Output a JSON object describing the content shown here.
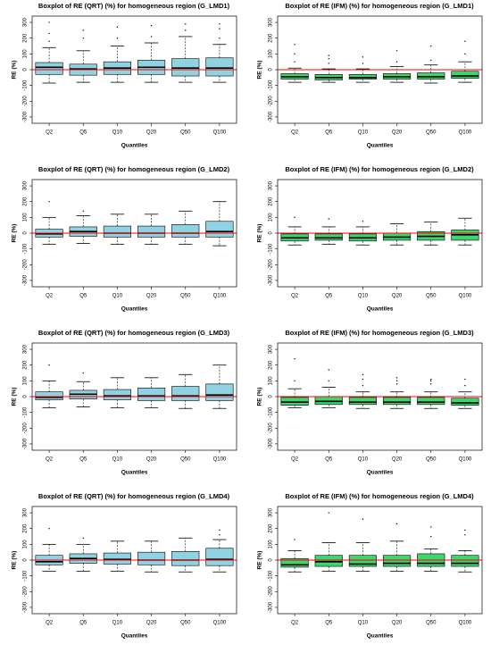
{
  "chart_data": [
    {
      "type": "box",
      "title": "Boxplot of RE (QRT) (%) for homogeneous region (G_LMD1)",
      "xlabel": "Quantiles",
      "ylabel": "RE (%)",
      "box_color": "#8fd3e3",
      "reference_line": {
        "value": 0,
        "color": "#ff0000"
      },
      "ylim": [
        -340,
        340
      ],
      "yticks": [
        -300,
        -200,
        -100,
        0,
        100,
        200,
        300
      ],
      "categories": [
        "Q2",
        "Q5",
        "Q10",
        "Q20",
        "Q50",
        "Q100"
      ],
      "boxes": [
        {
          "whisker_low": -85,
          "q1": -30,
          "median": 15,
          "q3": 45,
          "whisker_high": 140,
          "outliers": [
            180,
            230,
            300
          ]
        },
        {
          "whisker_low": -80,
          "q1": -35,
          "median": 5,
          "q3": 35,
          "whisker_high": 120,
          "outliers": [
            200,
            250
          ]
        },
        {
          "whisker_low": -80,
          "q1": -30,
          "median": 10,
          "q3": 50,
          "whisker_high": 150,
          "outliers": [
            200,
            270
          ]
        },
        {
          "whisker_low": -80,
          "q1": -30,
          "median": 15,
          "q3": 60,
          "whisker_high": 170,
          "outliers": [
            210,
            280
          ]
        },
        {
          "whisker_low": -80,
          "q1": -40,
          "median": 10,
          "q3": 70,
          "whisker_high": 210,
          "outliers": [
            250,
            290
          ]
        },
        {
          "whisker_low": -80,
          "q1": -40,
          "median": 10,
          "q3": 75,
          "whisker_high": 160,
          "outliers": [
            200,
            260,
            290
          ]
        }
      ]
    },
    {
      "type": "box",
      "title": "Boxplot of RE (IFM) (%) for homogeneous region (G_LMD1)",
      "xlabel": "Quantiles",
      "ylabel": "RE (%)",
      "box_color": "#3dd66e",
      "reference_line": {
        "value": 0,
        "color": "#ff0000"
      },
      "ylim": [
        -340,
        340
      ],
      "yticks": [
        -300,
        -200,
        -100,
        0,
        100,
        200,
        300
      ],
      "categories": [
        "Q2",
        "Q5",
        "Q10",
        "Q20",
        "Q50",
        "Q100"
      ],
      "boxes": [
        {
          "whisker_low": -80,
          "q1": -60,
          "median": -45,
          "q3": -25,
          "whisker_high": 10,
          "outliers": [
            50,
            100,
            160
          ]
        },
        {
          "whisker_low": -80,
          "q1": -65,
          "median": -50,
          "q3": -30,
          "whisker_high": 5,
          "outliers": [
            40,
            70,
            90
          ]
        },
        {
          "whisker_low": -80,
          "q1": -60,
          "median": -50,
          "q3": -30,
          "whisker_high": 5,
          "outliers": [
            40,
            80
          ]
        },
        {
          "whisker_low": -80,
          "q1": -60,
          "median": -45,
          "q3": -25,
          "whisker_high": 20,
          "outliers": [
            50,
            120
          ]
        },
        {
          "whisker_low": -85,
          "q1": -60,
          "median": -45,
          "q3": -20,
          "whisker_high": 30,
          "outliers": [
            60,
            150
          ]
        },
        {
          "whisker_low": -80,
          "q1": -55,
          "median": -40,
          "q3": -10,
          "whisker_high": 50,
          "outliers": [
            100,
            180
          ]
        }
      ]
    },
    {
      "type": "box",
      "title": "Boxplot of RE (QRT) (%) for homogeneous region (G_LMD2)",
      "xlabel": "Quantiles",
      "ylabel": "RE (%)",
      "box_color": "#8fd3e3",
      "reference_line": {
        "value": 0,
        "color": "#ff0000"
      },
      "ylim": [
        -340,
        340
      ],
      "yticks": [
        -300,
        -200,
        -100,
        0,
        100,
        200,
        300
      ],
      "categories": [
        "Q2",
        "Q5",
        "Q10",
        "Q20",
        "Q50",
        "Q100"
      ],
      "boxes": [
        {
          "whisker_low": -70,
          "q1": -25,
          "median": -5,
          "q3": 25,
          "whisker_high": 100,
          "outliers": [
            200
          ]
        },
        {
          "whisker_low": -65,
          "q1": -20,
          "median": 10,
          "q3": 40,
          "whisker_high": 110,
          "outliers": [
            140
          ]
        },
        {
          "whisker_low": -70,
          "q1": -25,
          "median": 0,
          "q3": 45,
          "whisker_high": 120,
          "outliers": []
        },
        {
          "whisker_low": -70,
          "q1": -25,
          "median": 0,
          "q3": 45,
          "whisker_high": 120,
          "outliers": []
        },
        {
          "whisker_low": -70,
          "q1": -25,
          "median": 0,
          "q3": 55,
          "whisker_high": 140,
          "outliers": []
        },
        {
          "whisker_low": -80,
          "q1": -25,
          "median": 10,
          "q3": 75,
          "whisker_high": 200,
          "outliers": []
        }
      ]
    },
    {
      "type": "box",
      "title": "Boxplot of RE (IFM) (%) for homogeneous region (G_LMD2)",
      "xlabel": "Quantiles",
      "ylabel": "RE (%)",
      "box_color": "#3dd66e",
      "reference_line": {
        "value": 0,
        "color": "#ff0000"
      },
      "ylim": [
        -340,
        340
      ],
      "yticks": [
        -300,
        -200,
        -100,
        0,
        100,
        200,
        300
      ],
      "categories": [
        "Q2",
        "Q5",
        "Q10",
        "Q20",
        "Q50",
        "Q100"
      ],
      "boxes": [
        {
          "whisker_low": -75,
          "q1": -50,
          "median": -30,
          "q3": -5,
          "whisker_high": 40,
          "outliers": [
            100
          ]
        },
        {
          "whisker_low": -70,
          "q1": -45,
          "median": -30,
          "q3": -5,
          "whisker_high": 40,
          "outliers": [
            90
          ]
        },
        {
          "whisker_low": -75,
          "q1": -50,
          "median": -30,
          "q3": -5,
          "whisker_high": 40,
          "outliers": [
            75
          ]
        },
        {
          "whisker_low": -75,
          "q1": -45,
          "median": -25,
          "q3": 0,
          "whisker_high": 60,
          "outliers": []
        },
        {
          "whisker_low": -75,
          "q1": -45,
          "median": -20,
          "q3": 10,
          "whisker_high": 70,
          "outliers": []
        },
        {
          "whisker_low": -75,
          "q1": -45,
          "median": -10,
          "q3": 20,
          "whisker_high": 95,
          "outliers": []
        }
      ]
    },
    {
      "type": "box",
      "title": "Boxplot of RE (QRT) (%) for homogeneous region (G_LMD3)",
      "xlabel": "Quantiles",
      "ylabel": "RE (%)",
      "box_color": "#8fd3e3",
      "reference_line": {
        "value": 0,
        "color": "#ff0000"
      },
      "ylim": [
        -340,
        340
      ],
      "yticks": [
        -300,
        -200,
        -100,
        0,
        100,
        200,
        300
      ],
      "categories": [
        "Q2",
        "Q5",
        "Q10",
        "Q20",
        "Q50",
        "Q100"
      ],
      "boxes": [
        {
          "whisker_low": -70,
          "q1": -20,
          "median": -5,
          "q3": 30,
          "whisker_high": 100,
          "outliers": [
            200
          ]
        },
        {
          "whisker_low": -65,
          "q1": -15,
          "median": 15,
          "q3": 40,
          "whisker_high": 95,
          "outliers": [
            150
          ]
        },
        {
          "whisker_low": -70,
          "q1": -20,
          "median": 5,
          "q3": 45,
          "whisker_high": 120,
          "outliers": []
        },
        {
          "whisker_low": -70,
          "q1": -25,
          "median": 5,
          "q3": 55,
          "whisker_high": 120,
          "outliers": []
        },
        {
          "whisker_low": -75,
          "q1": -25,
          "median": 5,
          "q3": 65,
          "whisker_high": 140,
          "outliers": []
        },
        {
          "whisker_low": -75,
          "q1": -25,
          "median": 10,
          "q3": 80,
          "whisker_high": 200,
          "outliers": []
        }
      ]
    },
    {
      "type": "box",
      "title": "Boxplot of RE (IFM) (%) for homogeneous region (G_LMD3)",
      "xlabel": "Quantiles",
      "ylabel": "RE (%)",
      "box_color": "#3dd66e",
      "reference_line": {
        "value": 0,
        "color": "#ff0000"
      },
      "ylim": [
        -340,
        340
      ],
      "yticks": [
        -300,
        -200,
        -100,
        0,
        100,
        200,
        300
      ],
      "categories": [
        "Q2",
        "Q5",
        "Q10",
        "Q20",
        "Q50",
        "Q100"
      ],
      "boxes": [
        {
          "whisker_low": -70,
          "q1": -55,
          "median": -35,
          "q3": -5,
          "whisker_high": 50,
          "outliers": [
            100,
            240
          ]
        },
        {
          "whisker_low": -70,
          "q1": -50,
          "median": -30,
          "q3": 0,
          "whisker_high": 60,
          "outliers": [
            100,
            170
          ]
        },
        {
          "whisker_low": -75,
          "q1": -50,
          "median": -35,
          "q3": -5,
          "whisker_high": 30,
          "outliers": [
            70,
            110,
            140
          ]
        },
        {
          "whisker_low": -75,
          "q1": -50,
          "median": -35,
          "q3": -5,
          "whisker_high": 30,
          "outliers": [
            80,
            100,
            120
          ]
        },
        {
          "whisker_low": -75,
          "q1": -50,
          "median": -35,
          "q3": -5,
          "whisker_high": 30,
          "outliers": [
            80,
            100,
            110
          ]
        },
        {
          "whisker_low": -75,
          "q1": -55,
          "median": -40,
          "q3": -10,
          "whisker_high": 30,
          "outliers": [
            70,
            110
          ]
        }
      ]
    },
    {
      "type": "box",
      "title": "Boxplot of RE (QRT) (%) for homogeneous region (G_LMD4)",
      "xlabel": "Quantiles",
      "ylabel": "RE (%)",
      "box_color": "#8fd3e3",
      "reference_line": {
        "value": 0,
        "color": "#ff0000"
      },
      "ylim": [
        -340,
        340
      ],
      "yticks": [
        -300,
        -200,
        -100,
        0,
        100,
        200,
        300
      ],
      "categories": [
        "Q2",
        "Q5",
        "Q10",
        "Q20",
        "Q50",
        "Q100"
      ],
      "boxes": [
        {
          "whisker_low": -70,
          "q1": -30,
          "median": -10,
          "q3": 30,
          "whisker_high": 100,
          "outliers": [
            200
          ]
        },
        {
          "whisker_low": -70,
          "q1": -20,
          "median": 10,
          "q3": 40,
          "whisker_high": 100,
          "outliers": [
            140
          ]
        },
        {
          "whisker_low": -70,
          "q1": -25,
          "median": 5,
          "q3": 45,
          "whisker_high": 120,
          "outliers": []
        },
        {
          "whisker_low": -75,
          "q1": -30,
          "median": 0,
          "q3": 50,
          "whisker_high": 120,
          "outliers": []
        },
        {
          "whisker_low": -75,
          "q1": -35,
          "median": 0,
          "q3": 55,
          "whisker_high": 140,
          "outliers": []
        },
        {
          "whisker_low": -75,
          "q1": -35,
          "median": 5,
          "q3": 75,
          "whisker_high": 130,
          "outliers": [
            160,
            190
          ]
        }
      ]
    },
    {
      "type": "box",
      "title": "Boxplot of RE (IFM) (%) for homogeneous region (G_LMD4)",
      "xlabel": "Quantiles",
      "ylabel": "RE (%)",
      "box_color": "#3dd66e",
      "reference_line": {
        "value": 0,
        "color": "#ff0000"
      },
      "ylim": [
        -340,
        340
      ],
      "yticks": [
        -300,
        -200,
        -100,
        0,
        100,
        200,
        300
      ],
      "categories": [
        "Q2",
        "Q5",
        "Q10",
        "Q20",
        "Q50",
        "Q100"
      ],
      "boxes": [
        {
          "whisker_low": -75,
          "q1": -45,
          "median": -30,
          "q3": 10,
          "whisker_high": 60,
          "outliers": [
            130
          ]
        },
        {
          "whisker_low": -70,
          "q1": -40,
          "median": -10,
          "q3": 30,
          "whisker_high": 110,
          "outliers": [
            300
          ]
        },
        {
          "whisker_low": -70,
          "q1": -40,
          "median": -25,
          "q3": 30,
          "whisker_high": 110,
          "outliers": [
            260
          ]
        },
        {
          "whisker_low": -70,
          "q1": -40,
          "median": -20,
          "q3": 30,
          "whisker_high": 120,
          "outliers": [
            230
          ]
        },
        {
          "whisker_low": -70,
          "q1": -40,
          "median": -20,
          "q3": 40,
          "whisker_high": 70,
          "outliers": [
            150,
            210
          ]
        },
        {
          "whisker_low": -75,
          "q1": -40,
          "median": -20,
          "q3": 30,
          "whisker_high": 60,
          "outliers": [
            160,
            190
          ]
        }
      ]
    }
  ]
}
